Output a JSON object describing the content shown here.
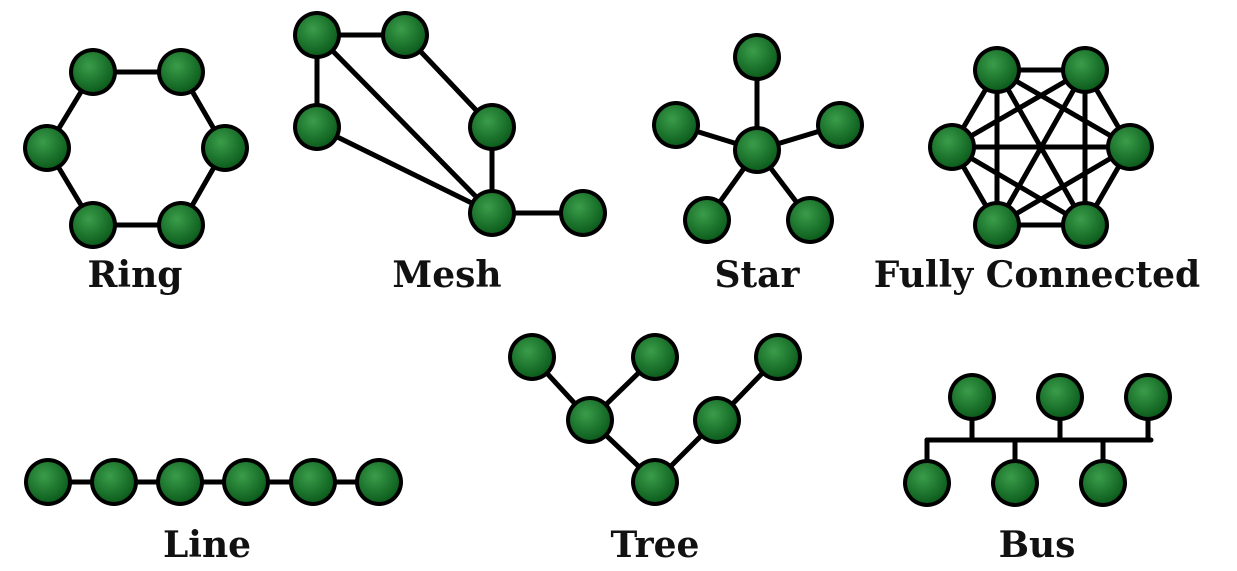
{
  "colors": {
    "node_light": "#3a9d4a",
    "node_dark": "#0a5a1a",
    "edge": "#000000",
    "label": "#111111",
    "background": "#ffffff"
  },
  "topologies": [
    {
      "id": "ring",
      "label": "Ring"
    },
    {
      "id": "mesh",
      "label": "Mesh"
    },
    {
      "id": "star",
      "label": "Star"
    },
    {
      "id": "fully-connected",
      "label": "Fully Connected"
    },
    {
      "id": "line",
      "label": "Line"
    },
    {
      "id": "tree",
      "label": "Tree"
    },
    {
      "id": "bus",
      "label": "Bus"
    }
  ]
}
